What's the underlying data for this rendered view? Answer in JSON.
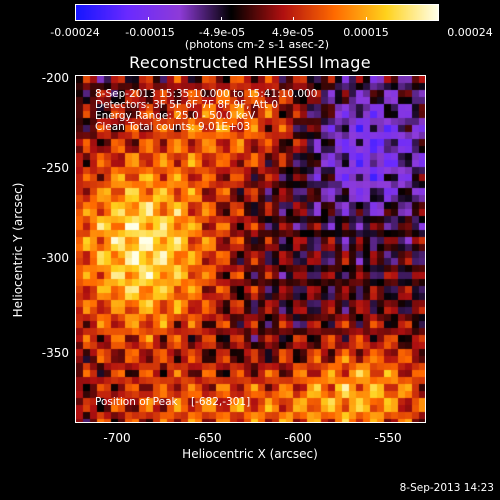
{
  "colorbar": {
    "tick_labels": [
      "-0.00024",
      "-0.00015",
      "-4.9e-05",
      "4.9e-05",
      "0.00015",
      "0.00024"
    ],
    "units": "(photons cm-2 s-1 asec-2)",
    "colors": [
      "#1616ff",
      "#6a2aff",
      "#8e3bd8",
      "#000000",
      "#b01010",
      "#ff6a00",
      "#ffd21c",
      "#ffffe8"
    ]
  },
  "title": "Reconstructed RHESSI Image",
  "info_lines": [
    "8-Sep-2013 15:35:10.000 to 15:41:10.000",
    "Detectors: 3F 5F 6F 7F 8F 9F, Att 0",
    "Energy Range: 25.0 - 50.0 keV",
    "Clean     Total counts: 9.01E+03"
  ],
  "peak": {
    "label": "Position of Peak",
    "value": "[-682,-301]"
  },
  "axes": {
    "x_label": "Heliocentric X (arcsec)",
    "y_label": "Heliocentric Y (arcsec)",
    "x_ticks": [
      "-700",
      "-650",
      "-600",
      "-550"
    ],
    "y_ticks": [
      "-200",
      "-250",
      "-300",
      "-350"
    ],
    "x_range": [
      -722,
      -530
    ],
    "y_range": [
      -390,
      -200
    ]
  },
  "timestamp": "8-Sep-2013 14:23"
}
